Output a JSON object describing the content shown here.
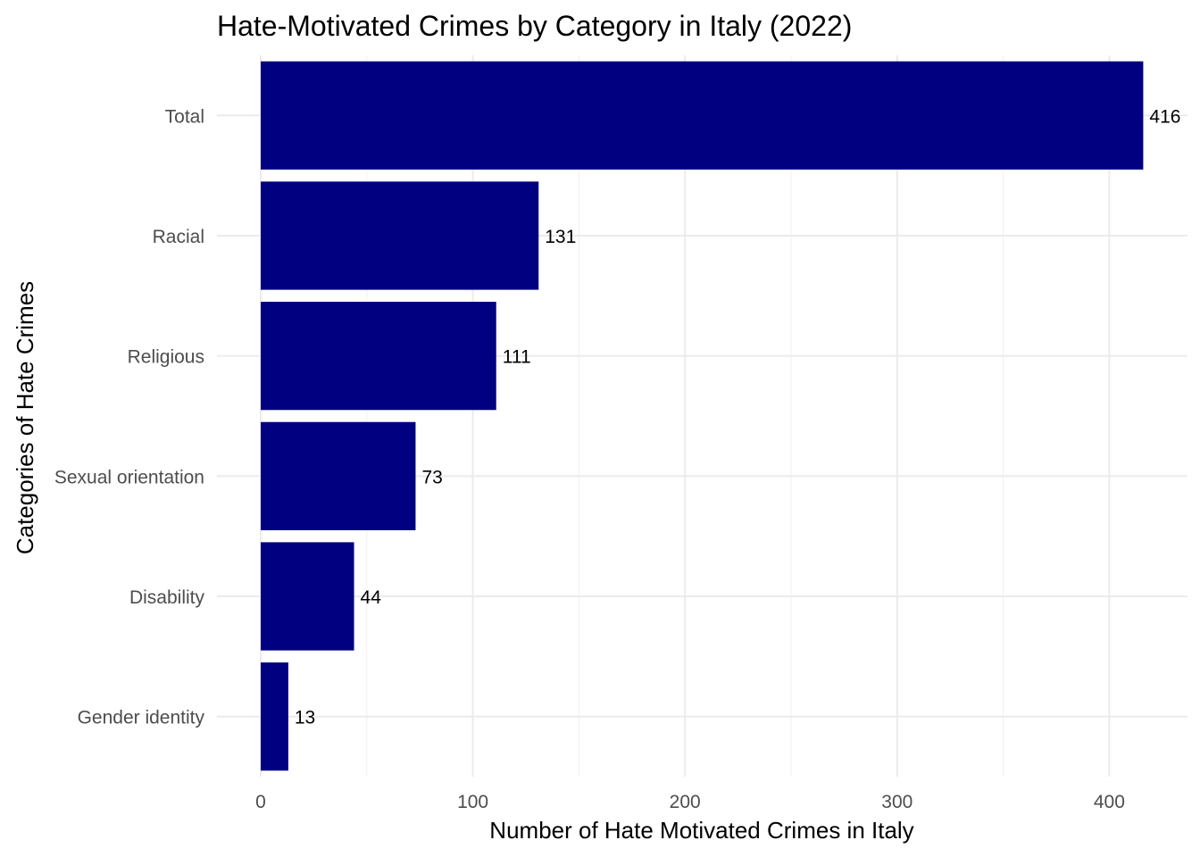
{
  "chart_data": {
    "type": "bar",
    "orientation": "horizontal",
    "title": "Hate-Motivated Crimes by Category in Italy (2022)",
    "xlabel": "Number of Hate Motivated Crimes in Italy",
    "ylabel": "Categories of Hate Crimes",
    "categories": [
      "Total",
      "Racial",
      "Religious",
      "Sexual orientation",
      "Disability",
      "Gender identity"
    ],
    "values": [
      416,
      131,
      111,
      73,
      44,
      13
    ],
    "xlim": [
      0,
      420
    ],
    "x_ticks": [
      0,
      100,
      200,
      300,
      400
    ],
    "bar_color": "#000080",
    "grid": true,
    "legend": "none"
  }
}
